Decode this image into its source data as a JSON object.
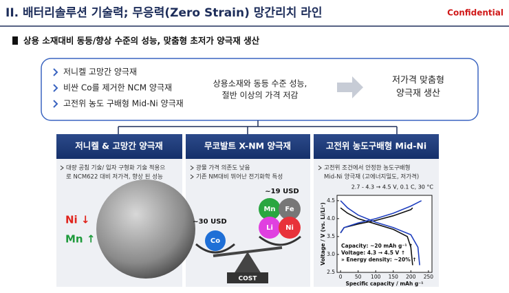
{
  "header": {
    "title": "II. 배터리솔루션 기술력; 무응력(Zero Strain) 망간리치 라인",
    "badge": "Confidential"
  },
  "subtitle": "상용 소재대비 동등/향상 수준의 성능, 맞춤형 초저가 양극재 생산",
  "summary": {
    "bullets": [
      "저니켈 고망간 양극재",
      "비싼 Co를 제거한 NCM 양극재",
      "고전위 농도 구배형 Mid-Ni 양극재"
    ],
    "middle": [
      "상용소재와 동등 수준 성능,",
      "절반 이상의 가격 저감"
    ],
    "result": [
      "저가격 맞춤형",
      "양극재 생산"
    ]
  },
  "columns": [
    {
      "title": "저니켈 & 고망간 양극재",
      "bullet": [
        "대량 공침 기술/ 입자 구형화 기술 적용으",
        "로 NCM622 대비 저가격, 향상 된 성능"
      ],
      "labels": [
        "Ni ↓",
        "Mn ↑"
      ]
    },
    {
      "title": "무코발트 X-NM 양극재",
      "bullets": [
        "광물 가격 의존도 낮음",
        "기존 NM대비 뛰어난 전기화학 특성"
      ],
      "low_price": "~19 USD",
      "high_price": "~30 USD",
      "elements": [
        "Mn",
        "Fe",
        "Li",
        "Ni"
      ],
      "cobalt": "Co",
      "scale_label": "COST"
    },
    {
      "title": "고전위 농도구배형 Mid-Ni",
      "bullet": [
        "고전위 조건에서 안정한 농도구배형",
        "Mid-Ni 양극재 (고에너지밀도, 저가격)"
      ]
    }
  ],
  "chart_data": {
    "type": "line",
    "condition": "2.7 - 4.3 → 4.5 V, 0.1 C, 30 °C",
    "xlabel": "Specific capacity / mAh g⁻¹",
    "ylabel": "Voltage / V (vs. Li/Li⁺)",
    "xlim": [
      -10,
      260
    ],
    "ylim": [
      2.5,
      4.65
    ],
    "xticks": [
      0,
      50,
      100,
      150,
      200,
      250
    ],
    "yticks": [
      2.5,
      {
        "value": 3,
        "label": "3.0"
      },
      3.5,
      {
        "value": 4,
        "label": "4.0"
      },
      4.5
    ],
    "annotations": [
      "Capacity: ~20 mAh g⁻¹ ↑",
      "Voltage: 4.3 → 4.5 V ↑",
      "» Energy density: ~20% ↑"
    ],
    "series": [
      {
        "color": "#111111",
        "x": [
          0,
          10,
          50,
          100,
          150,
          200,
          205
        ],
        "values": [
          3.6,
          3.75,
          3.85,
          3.95,
          4.08,
          4.25,
          4.3
        ]
      },
      {
        "color": "#111111",
        "x": [
          0,
          20,
          50,
          100,
          150,
          190,
          200,
          205
        ],
        "values": [
          4.3,
          4.15,
          4.0,
          3.85,
          3.7,
          3.5,
          3.2,
          2.7
        ]
      },
      {
        "color": "#1f3fbf",
        "x": [
          0,
          10,
          50,
          100,
          150,
          200,
          230
        ],
        "values": [
          3.6,
          3.75,
          3.88,
          4.0,
          4.15,
          4.35,
          4.5
        ]
      },
      {
        "color": "#1f3fbf",
        "x": [
          0,
          20,
          50,
          100,
          150,
          200,
          220,
          225
        ],
        "values": [
          4.5,
          4.3,
          4.1,
          3.9,
          3.75,
          3.55,
          3.2,
          2.7
        ]
      }
    ]
  }
}
